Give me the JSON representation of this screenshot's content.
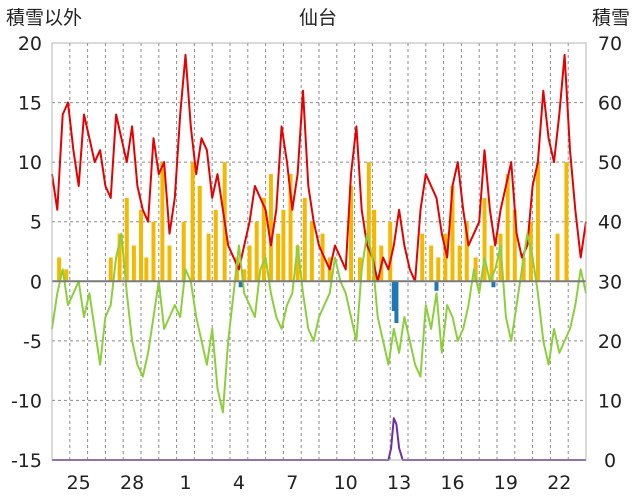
{
  "chart_data": {
    "type": "line",
    "title": "仙台",
    "left_axis_label": "積雪以外",
    "right_axis_label": "積雪",
    "ylim_left": [
      -15,
      20
    ],
    "yticks_left": [
      -15,
      -10,
      -5,
      0,
      5,
      10,
      15,
      20
    ],
    "ylim_right": [
      0,
      70
    ],
    "yticks_right": [
      0,
      10,
      20,
      30,
      40,
      50,
      60,
      70
    ],
    "xlim_days": [
      0,
      30
    ],
    "xticks": [
      {
        "label": "25",
        "day": 1.5
      },
      {
        "label": "28",
        "day": 4.5
      },
      {
        "label": "1",
        "day": 7.5
      },
      {
        "label": "4",
        "day": 10.5
      },
      {
        "label": "7",
        "day": 13.5
      },
      {
        "label": "10",
        "day": 16.5
      },
      {
        "label": "13",
        "day": 19.5
      },
      {
        "label": "16",
        "day": 22.5
      },
      {
        "label": "19",
        "day": 25.5
      },
      {
        "label": "22",
        "day": 28.5
      }
    ],
    "grid": true,
    "series": [
      {
        "kind": "bar",
        "axis": "left",
        "color": "#f5b800",
        "x": [
          0.4,
          0.8,
          3.3,
          3.8,
          4.2,
          4.6,
          5.0,
          5.3,
          5.7,
          6.2,
          6.6,
          7.4,
          7.9,
          8.3,
          8.8,
          9.2,
          9.7,
          10.4,
          10.8,
          11.1,
          11.5,
          11.9,
          12.3,
          12.7,
          13.0,
          13.4,
          13.8,
          14.2,
          14.6,
          15.2,
          15.6,
          16.8,
          17.3,
          17.8,
          18.1,
          18.5,
          19.0,
          20.8,
          21.3,
          21.7,
          22.1,
          22.5,
          22.9,
          23.3,
          23.8,
          24.3,
          24.7,
          25.2,
          25.6,
          26.0,
          26.5,
          26.9,
          27.3,
          28.4,
          28.9
        ],
        "values": [
          2,
          1,
          2,
          4,
          7,
          3,
          6,
          2,
          5,
          10,
          3,
          5,
          10,
          8,
          4,
          6,
          10,
          2,
          1,
          3,
          5,
          7,
          9,
          4,
          6,
          9,
          3,
          7,
          5,
          4,
          2,
          8,
          2,
          10,
          6,
          3,
          5,
          4,
          3,
          2,
          4,
          8,
          3,
          5,
          2,
          7,
          3,
          4,
          9,
          6,
          2,
          5,
          10,
          4,
          10
        ]
      },
      {
        "kind": "bar",
        "axis": "left",
        "color": "#1f77b4",
        "x": [
          10.6,
          19.2,
          19.35,
          21.6,
          24.8
        ],
        "values": [
          -0.5,
          -2.5,
          -3.5,
          -0.8,
          -0.5
        ]
      },
      {
        "kind": "line",
        "axis": "left",
        "color": "#e60000",
        "x": [
          0,
          0.3,
          0.6,
          0.9,
          1.2,
          1.5,
          1.8,
          2.1,
          2.4,
          2.7,
          3.0,
          3.3,
          3.6,
          3.9,
          4.2,
          4.5,
          4.8,
          5.1,
          5.4,
          5.7,
          6.0,
          6.3,
          6.6,
          6.9,
          7.2,
          7.5,
          7.8,
          8.1,
          8.4,
          8.7,
          9.0,
          9.3,
          9.6,
          9.9,
          10.2,
          10.5,
          10.8,
          11.1,
          11.4,
          11.7,
          12.0,
          12.3,
          12.6,
          12.9,
          13.2,
          13.5,
          13.8,
          14.1,
          14.4,
          14.7,
          15.0,
          15.3,
          15.6,
          15.9,
          16.2,
          16.5,
          16.8,
          17.1,
          17.4,
          17.7,
          18.0,
          18.3,
          18.6,
          18.9,
          19.2,
          19.5,
          19.8,
          20.1,
          20.4,
          20.7,
          21.0,
          21.3,
          21.6,
          21.9,
          22.2,
          22.5,
          22.8,
          23.1,
          23.4,
          23.7,
          24.0,
          24.3,
          24.6,
          24.9,
          25.2,
          25.5,
          25.8,
          26.1,
          26.4,
          26.7,
          27.0,
          27.3,
          27.6,
          27.9,
          28.2,
          28.5,
          28.8,
          29.1,
          29.4,
          29.7,
          30.0
        ],
        "values": [
          9,
          6,
          14,
          15,
          11,
          8,
          14,
          12,
          10,
          11,
          8,
          7,
          14,
          12,
          10,
          13,
          8,
          6,
          5,
          12,
          9,
          10,
          4,
          7,
          14,
          19,
          13,
          9,
          12,
          11,
          7,
          9,
          6,
          3,
          2,
          1,
          3,
          5,
          8,
          7,
          6,
          3,
          6,
          13,
          10,
          6,
          9,
          16,
          8,
          5,
          3,
          2,
          1,
          3,
          2,
          1,
          9,
          13,
          6,
          3,
          2,
          0,
          2,
          1,
          3,
          6,
          3,
          1,
          0,
          6,
          9,
          8,
          7,
          4,
          2,
          8,
          10,
          6,
          3,
          4,
          5,
          11,
          6,
          3,
          6,
          8,
          10,
          4,
          2,
          3,
          8,
          10,
          16,
          12,
          10,
          14,
          19,
          11,
          6,
          2,
          5
        ]
      },
      {
        "kind": "line",
        "axis": "left",
        "color": "#8ccf3c",
        "x": [
          0,
          0.3,
          0.6,
          0.9,
          1.2,
          1.5,
          1.8,
          2.1,
          2.4,
          2.7,
          3.0,
          3.3,
          3.6,
          3.9,
          4.2,
          4.5,
          4.8,
          5.1,
          5.4,
          5.7,
          6.0,
          6.3,
          6.6,
          6.9,
          7.2,
          7.5,
          7.8,
          8.1,
          8.4,
          8.7,
          9.0,
          9.3,
          9.6,
          9.9,
          10.2,
          10.5,
          10.8,
          11.1,
          11.4,
          11.7,
          12.0,
          12.3,
          12.6,
          12.9,
          13.2,
          13.5,
          13.8,
          14.1,
          14.4,
          14.7,
          15.0,
          15.3,
          15.6,
          15.9,
          16.2,
          16.5,
          16.8,
          17.1,
          17.4,
          17.7,
          18.0,
          18.3,
          18.6,
          18.9,
          19.2,
          19.5,
          19.8,
          20.1,
          20.4,
          20.7,
          21.0,
          21.3,
          21.6,
          21.9,
          22.2,
          22.5,
          22.8,
          23.1,
          23.4,
          23.7,
          24.0,
          24.3,
          24.6,
          24.9,
          25.2,
          25.5,
          25.8,
          26.1,
          26.4,
          26.7,
          27.0,
          27.3,
          27.6,
          27.9,
          28.2,
          28.5,
          28.8,
          29.1,
          29.4,
          29.7,
          30.0
        ],
        "values": [
          -4,
          -1,
          1,
          -2,
          -1,
          0,
          -3,
          -1,
          -4,
          -7,
          -3,
          -2,
          2,
          4,
          -1,
          -5,
          -7,
          -8,
          -6,
          -3,
          0,
          -4,
          -3,
          -2,
          -3,
          1,
          0,
          -3,
          -5,
          -7,
          -4,
          -9,
          -11,
          -5,
          -1,
          3,
          -1,
          -2,
          -3,
          1,
          2,
          -1,
          -3,
          -4,
          -2,
          -1,
          3,
          -1,
          -4,
          -5,
          -3,
          -2,
          -1,
          2,
          0,
          -1,
          -3,
          -5,
          1,
          4,
          2,
          -3,
          -5,
          -7,
          -4,
          -6,
          -3,
          -5,
          -7,
          -8,
          -2,
          -4,
          -1,
          -6,
          -2,
          -3,
          -5,
          -4,
          -2,
          1,
          -1,
          2,
          0,
          1,
          3,
          -3,
          -5,
          -2,
          1,
          4,
          2,
          -1,
          -5,
          -7,
          -4,
          -6,
          -5,
          -4,
          -2,
          1,
          -1
        ]
      },
      {
        "kind": "line",
        "axis": "right",
        "color": "#7030a0",
        "x": [
          0,
          18.9,
          19.05,
          19.2,
          19.35,
          19.5,
          19.7,
          30
        ],
        "values": [
          0,
          0,
          2,
          7,
          6,
          2,
          0,
          0
        ]
      }
    ]
  }
}
